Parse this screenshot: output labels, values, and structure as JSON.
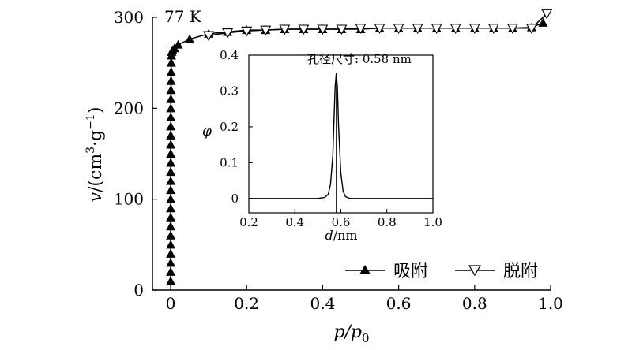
{
  "chart_data": [
    {
      "type": "line",
      "annotation": "77 K",
      "xlabel": "p/p0",
      "xlabel_parts": {
        "main": "p/p",
        "sub": "0"
      },
      "ylabel": "v/(cm³·g⁻¹)",
      "ylabel_parts": {
        "var": "v",
        "open": "/(cm",
        "sup1": "3",
        "mid": "·g",
        "sup2": "−1",
        "close": ")"
      },
      "xlim": [
        0,
        1.0
      ],
      "ylim": [
        0,
        300
      ],
      "xticks": [
        0,
        0.2,
        0.4,
        0.6,
        0.8,
        1.0
      ],
      "xtick_labels": [
        "0",
        "0.2",
        "0.4",
        "0.6",
        "0.8",
        "1.0"
      ],
      "yticks": [
        0,
        100,
        200,
        300
      ],
      "ytick_labels": [
        "0",
        "100",
        "200",
        "300"
      ],
      "legend_position": "bottom-right",
      "series": [
        {
          "name": "吸附",
          "marker": "filled-triangle-up",
          "x": [
            0.0002,
            0.0002,
            0.0002,
            0.0002,
            0.0002,
            0.0002,
            0.0002,
            0.0002,
            0.0002,
            0.0002,
            0.0002,
            0.0002,
            0.0003,
            0.0003,
            0.0003,
            0.0003,
            0.0004,
            0.0004,
            0.0005,
            0.0006,
            0.0007,
            0.0008,
            0.001,
            0.0013,
            0.0016,
            0.002,
            0.003,
            0.005,
            0.01,
            0.02,
            0.05,
            0.1,
            0.15,
            0.2,
            0.25,
            0.3,
            0.35,
            0.4,
            0.45,
            0.5,
            0.55,
            0.6,
            0.65,
            0.7,
            0.75,
            0.8,
            0.85,
            0.9,
            0.95,
            0.98
          ],
          "y": [
            10,
            20,
            30,
            40,
            50,
            60,
            70,
            80,
            90,
            100,
            110,
            120,
            130,
            140,
            150,
            160,
            170,
            180,
            190,
            200,
            210,
            220,
            230,
            240,
            250,
            258,
            262,
            264,
            266,
            270,
            276,
            282,
            284,
            286,
            286,
            287,
            287,
            287,
            287,
            287,
            288,
            288,
            288,
            288,
            288,
            288,
            288,
            288,
            289,
            294
          ]
        },
        {
          "name": "脱附",
          "marker": "open-triangle-down",
          "x": [
            0.99,
            0.95,
            0.9,
            0.85,
            0.8,
            0.75,
            0.7,
            0.65,
            0.6,
            0.55,
            0.5,
            0.45,
            0.4,
            0.35,
            0.3,
            0.25,
            0.2,
            0.15,
            0.1
          ],
          "y": [
            304,
            288,
            288,
            288,
            288,
            288,
            288,
            288,
            288,
            288,
            288,
            287,
            287,
            287,
            287,
            286,
            285,
            283,
            280
          ]
        }
      ]
    },
    {
      "type": "line",
      "xlabel": "d/nm",
      "xlabel_parts": {
        "var": "d",
        "unit": "/nm"
      },
      "ylabel": "φ",
      "annotation": "孔径尺寸: 0.58 nm",
      "peak_marker_x": 0.58,
      "xlim": [
        0.2,
        1.0
      ],
      "ylim": [
        -0.04,
        0.4
      ],
      "xticks": [
        0.2,
        0.4,
        0.6,
        0.8,
        1.0
      ],
      "xtick_labels": [
        "0.2",
        "0.4",
        "0.6",
        "0.8",
        "1.0"
      ],
      "yticks": [
        0,
        0.1,
        0.2,
        0.3,
        0.4
      ],
      "ytick_labels": [
        "0",
        "0.1",
        "0.2",
        "0.3",
        "0.4"
      ],
      "series": [
        {
          "x": [
            0.2,
            0.3,
            0.4,
            0.5,
            0.53,
            0.545,
            0.555,
            0.565,
            0.57,
            0.575,
            0.58,
            0.585,
            0.59,
            0.6,
            0.61,
            0.62,
            0.64,
            0.7,
            0.8,
            0.9,
            1.0
          ],
          "y": [
            0,
            0,
            0,
            0,
            0.003,
            0.012,
            0.04,
            0.12,
            0.22,
            0.31,
            0.35,
            0.31,
            0.2,
            0.07,
            0.02,
            0.005,
            0,
            0,
            0,
            0,
            0
          ]
        }
      ]
    }
  ]
}
